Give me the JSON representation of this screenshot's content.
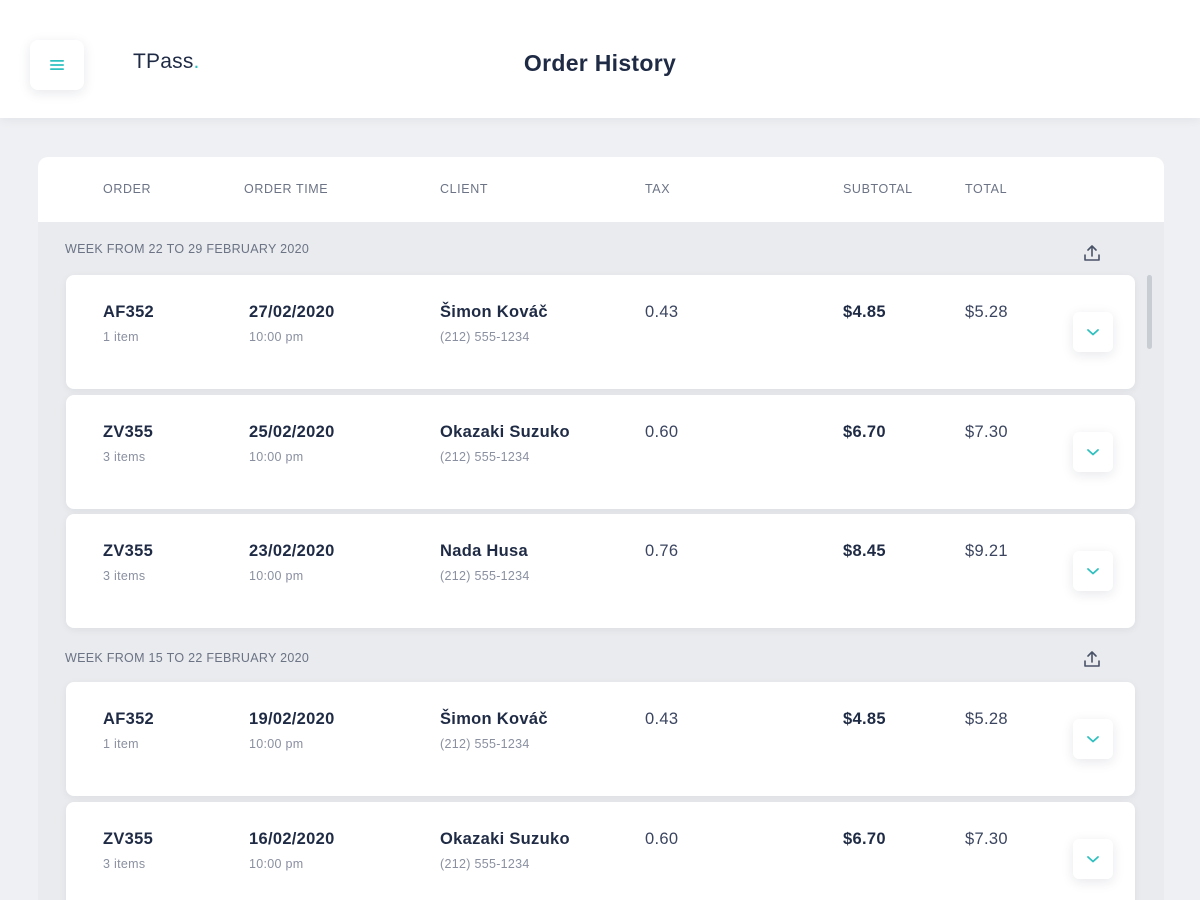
{
  "app": {
    "logo_text": "TPass",
    "logo_dot": ".",
    "title": "Order History",
    "accent_color": "#2fc0c0",
    "menu_icon": "hamburger-menu-icon"
  },
  "table": {
    "columns": [
      "ORDER",
      "ORDER TIME",
      "CLIENT",
      "TAX",
      "SUBTOTAL",
      "TOTAL"
    ],
    "sections": [
      {
        "label": "WEEK FROM 22 TO 29 FEBRUARY 2020",
        "export_icon": "upload-icon",
        "rows": [
          {
            "order_id": "AF352",
            "items": "1 item",
            "date": "27/02/2020",
            "time": "10:00 pm",
            "client": "Šimon Kováč",
            "phone": "(212) 555-1234",
            "tax": "0.43",
            "subtotal": "$4.85",
            "total": "$5.28"
          },
          {
            "order_id": "ZV355",
            "items": "3 items",
            "date": "25/02/2020",
            "time": "10:00 pm",
            "client": "Okazaki Suzuko",
            "phone": "(212) 555-1234",
            "tax": "0.60",
            "subtotal": "$6.70",
            "total": "$7.30"
          },
          {
            "order_id": "ZV355",
            "items": "3 items",
            "date": "23/02/2020",
            "time": "10:00 pm",
            "client": "Nada Husa",
            "phone": "(212) 555-1234",
            "tax": "0.76",
            "subtotal": "$8.45",
            "total": "$9.21"
          }
        ]
      },
      {
        "label": "WEEK FROM 15 TO 22 FEBRUARY 2020",
        "export_icon": "upload-icon",
        "rows": [
          {
            "order_id": "AF352",
            "items": "1 item",
            "date": "19/02/2020",
            "time": "10:00 pm",
            "client": "Šimon Kováč",
            "phone": "(212) 555-1234",
            "tax": "0.43",
            "subtotal": "$4.85",
            "total": "$5.28"
          },
          {
            "order_id": "ZV355",
            "items": "3 items",
            "date": "16/02/2020",
            "time": "10:00 pm",
            "client": "Okazaki Suzuko",
            "phone": "(212) 555-1234",
            "tax": "0.60",
            "subtotal": "$6.70",
            "total": "$7.30"
          }
        ]
      }
    ]
  }
}
